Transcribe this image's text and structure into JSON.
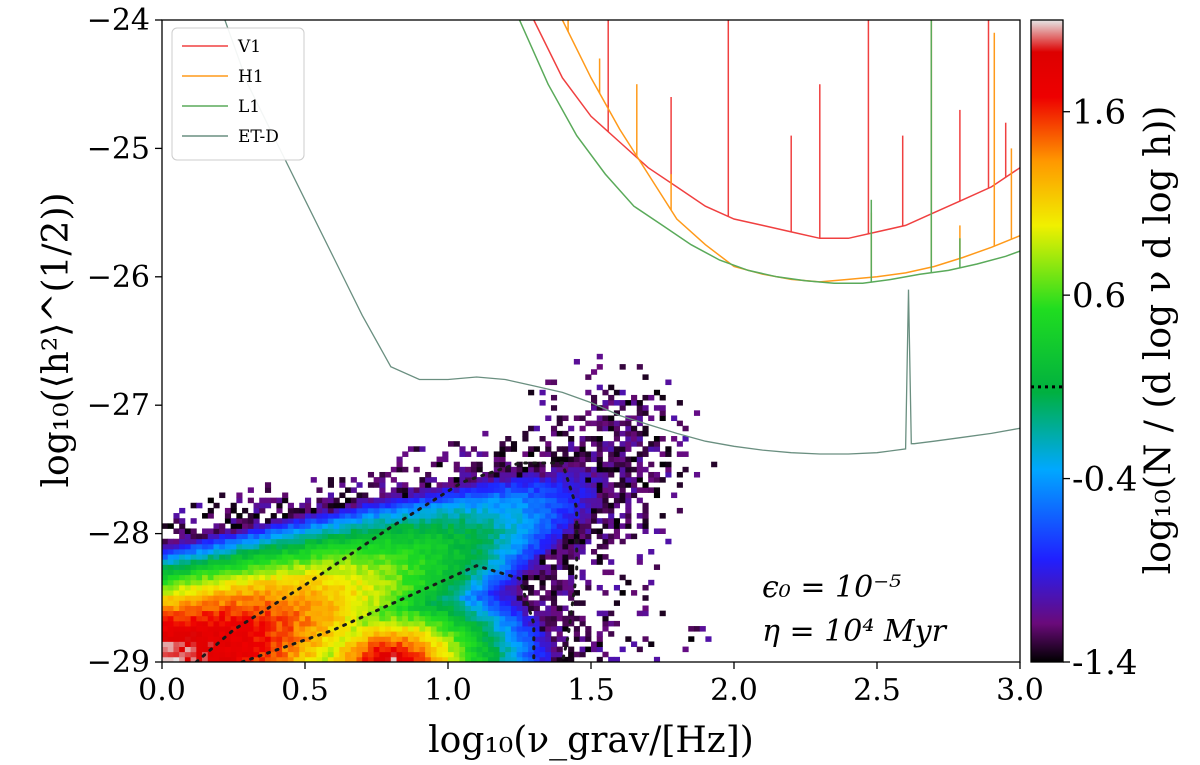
{
  "chart_data": {
    "type": "heatmap",
    "title": "",
    "xlabel": "log₁₀(ν_grav/[Hz])",
    "ylabel": "log₁₀(⟨h²⟩^(1/2))",
    "xlim": [
      0.0,
      3.0
    ],
    "ylim": [
      -29,
      -24
    ],
    "x_ticks": [
      "0.0",
      "0.5",
      "1.0",
      "1.5",
      "2.0",
      "2.5",
      "3.0"
    ],
    "y_ticks": [
      "−24",
      "−25",
      "−26",
      "−27",
      "−28",
      "−29"
    ],
    "colorbar": {
      "label": "log₁₀(N / (d log ν d log h))",
      "range": [
        -1.4,
        2.1
      ],
      "ticks": [
        "1.6",
        "0.6",
        "-0.4",
        "-1.4"
      ],
      "tick_values": [
        1.6,
        0.6,
        -0.4,
        -1.4
      ],
      "dotted_marker_value": 0.1
    },
    "heatmap": {
      "description_axis": "log density of events",
      "ridge": {
        "x_start": 0.0,
        "y_start": -29.0,
        "x_end": 1.45,
        "y_end": -27.6
      },
      "peak": {
        "x": 0.8,
        "y": -29.0,
        "value": 2.1
      }
    },
    "series": [
      {
        "name": "V1",
        "color": "#f04040",
        "x": [
          1.3,
          1.4,
          1.5,
          1.6,
          1.7,
          1.8,
          1.9,
          2.0,
          2.1,
          2.2,
          2.3,
          2.4,
          2.5,
          2.6,
          2.7,
          2.8,
          2.9,
          3.0
        ],
        "y": [
          -24.0,
          -24.45,
          -24.75,
          -24.95,
          -25.15,
          -25.3,
          -25.45,
          -25.55,
          -25.6,
          -25.65,
          -25.7,
          -25.7,
          -25.65,
          -25.6,
          -25.5,
          -25.4,
          -25.3,
          -25.15
        ],
        "spikes": [
          [
            1.56,
            -24.0
          ],
          [
            1.78,
            -24.6
          ],
          [
            1.98,
            -24.0
          ],
          [
            2.2,
            -24.9
          ],
          [
            2.3,
            -24.5
          ],
          [
            2.47,
            -24.0
          ],
          [
            2.59,
            -24.9
          ],
          [
            2.69,
            -24.0
          ],
          [
            2.79,
            -24.7
          ],
          [
            2.89,
            -24.0
          ],
          [
            2.95,
            -24.8
          ]
        ]
      },
      {
        "name": "H1",
        "color": "#ff9a1a",
        "x": [
          1.4,
          1.5,
          1.6,
          1.7,
          1.8,
          1.9,
          2.0,
          2.1,
          2.2,
          2.3,
          2.4,
          2.5,
          2.6,
          2.7,
          2.8,
          2.9,
          3.0
        ],
        "y": [
          -24.0,
          -24.45,
          -24.85,
          -25.2,
          -25.55,
          -25.75,
          -25.92,
          -25.98,
          -26.02,
          -26.04,
          -26.02,
          -26.0,
          -25.97,
          -25.92,
          -25.85,
          -25.77,
          -25.68
        ],
        "spikes": [
          [
            1.42,
            -24.0
          ],
          [
            1.53,
            -24.3
          ],
          [
            1.66,
            -24.5
          ],
          [
            1.78,
            -25.2
          ],
          [
            2.48,
            -25.5
          ],
          [
            2.69,
            -24.0
          ],
          [
            2.79,
            -25.6
          ],
          [
            2.91,
            -24.1
          ],
          [
            2.97,
            -25.0
          ]
        ]
      },
      {
        "name": "L1",
        "color": "#5aaa5a",
        "x": [
          1.25,
          1.35,
          1.45,
          1.55,
          1.65,
          1.75,
          1.85,
          1.95,
          2.05,
          2.15,
          2.25,
          2.35,
          2.45,
          2.55,
          2.65,
          2.75,
          2.85,
          2.95,
          3.0
        ],
        "y": [
          -24.0,
          -24.5,
          -24.9,
          -25.2,
          -25.45,
          -25.6,
          -25.75,
          -25.87,
          -25.95,
          -26.0,
          -26.03,
          -26.05,
          -26.05,
          -26.02,
          -25.98,
          -25.95,
          -25.9,
          -25.84,
          -25.8
        ],
        "spikes": [
          [
            2.48,
            -25.4
          ],
          [
            2.69,
            -24.0
          ],
          [
            2.79,
            -25.7
          ]
        ]
      },
      {
        "name": "ET-D",
        "color": "#6a8f80",
        "x": [
          0.22,
          0.3,
          0.4,
          0.5,
          0.6,
          0.7,
          0.8,
          0.9,
          1.0,
          1.1,
          1.2,
          1.3,
          1.4,
          1.5,
          1.6,
          1.7,
          1.8,
          1.9,
          2.0,
          2.1,
          2.2,
          2.3,
          2.4,
          2.5,
          2.6,
          2.61,
          2.62,
          2.63,
          2.7,
          2.8,
          2.9,
          3.0
        ],
        "y": [
          -24.0,
          -24.5,
          -24.95,
          -25.4,
          -25.85,
          -26.3,
          -26.7,
          -26.8,
          -26.8,
          -26.78,
          -26.8,
          -26.85,
          -26.9,
          -26.98,
          -27.08,
          -27.15,
          -27.22,
          -27.28,
          -27.32,
          -27.35,
          -27.37,
          -27.38,
          -27.38,
          -27.37,
          -27.34,
          -26.1,
          -27.3,
          -27.3,
          -27.28,
          -27.25,
          -27.22,
          -27.18
        ]
      }
    ],
    "legend": {
      "entries": [
        "V1",
        "H1",
        "L1",
        "ET-D"
      ],
      "location": "upper-left"
    },
    "annotations": [
      {
        "text": "ϵ₀ = 10⁻⁵"
      },
      {
        "text": "η = 10⁴ Myr"
      }
    ]
  }
}
